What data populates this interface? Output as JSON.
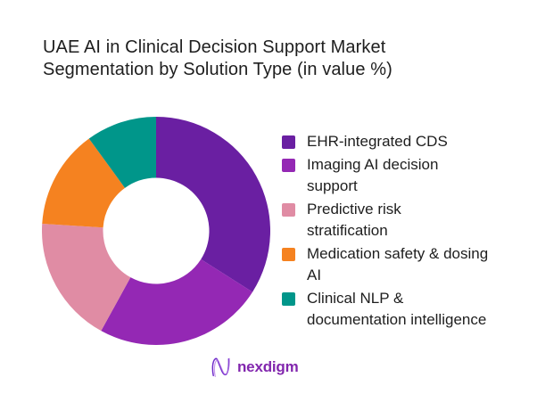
{
  "title": {
    "line1": "UAE AI in Clinical Decision Support Market",
    "line2": "Segmentation by Solution Type (in value %)"
  },
  "chart_data": {
    "type": "pie",
    "subtype": "donut",
    "title": "UAE AI in Clinical Decision Support Market Segmentation by Solution Type (in value %)",
    "unit": "value %",
    "start_angle_deg": 0,
    "direction": "clockwise",
    "inner_radius_ratio": 0.465,
    "legend_position": "right",
    "values_shown_on_chart": false,
    "segments": [
      {
        "label": "EHR-integrated CDS",
        "legend_label": "EHR-integrated CDS",
        "value": 34,
        "color": "#6a1fa2"
      },
      {
        "label": "Imaging AI decision support",
        "legend_label": "Imaging AI decision\nsupport",
        "value": 24,
        "color": "#9428b4"
      },
      {
        "label": "Predictive risk stratification",
        "legend_label": "Predictive risk\nstratification",
        "value": 18,
        "color": "#e08ca4"
      },
      {
        "label": "Medication safety & dosing AI",
        "legend_label": "Medication safety & dosing\nAI",
        "value": 14,
        "color": "#f58220"
      },
      {
        "label": "Clinical NLP & documentation intelligence",
        "legend_label": "Clinical NLP &\ndocumentation intelligence",
        "value": 10,
        "color": "#00968a"
      }
    ]
  },
  "branding": {
    "logo_text": "nexdigm",
    "logo_text_color": "#8227ae",
    "mark_color_dark": "#6d28c9",
    "mark_color_light": "#b473e6"
  }
}
